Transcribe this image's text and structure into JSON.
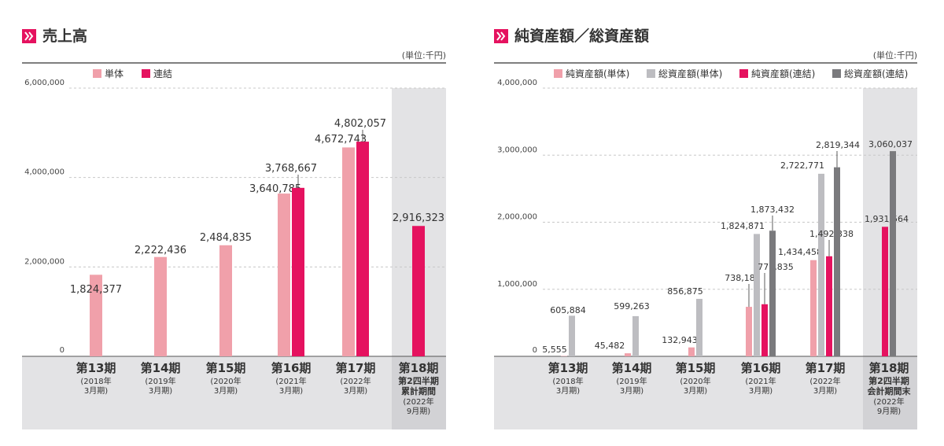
{
  "chart_data": [
    {
      "type": "bar",
      "title": "売上高",
      "unit": "(単位:千円)",
      "ylim": [
        0,
        6000000
      ],
      "yticks": [
        "0",
        "2,000,000",
        "4,000,000",
        "6,000,000"
      ],
      "grid": true,
      "legend_position": "top-left",
      "categories": [
        {
          "label": "第13期",
          "lines": [
            "(2018年",
            "3月期)"
          ]
        },
        {
          "label": "第14期",
          "lines": [
            "(2019年",
            "3月期)"
          ]
        },
        {
          "label": "第15期",
          "lines": [
            "(2020年",
            "3月期)"
          ]
        },
        {
          "label": "第16期",
          "lines": [
            "(2021年",
            "3月期)"
          ]
        },
        {
          "label": "第17期",
          "lines": [
            "(2022年",
            "3月期)"
          ]
        },
        {
          "label": "第18期",
          "bold_lines": [
            "第2四半期",
            "累計期間"
          ],
          "lines": [
            "(2022年",
            "9月期)"
          ],
          "highlight": true
        }
      ],
      "series": [
        {
          "name": "単体",
          "color": "#f0a0aa",
          "values": [
            1824377,
            2222436,
            2484835,
            3640785,
            4672743,
            null
          ],
          "labels": [
            "1,824,377",
            "2,222,436",
            "2,484,835",
            "3,640,785",
            "4,672,743",
            null
          ]
        },
        {
          "name": "連結",
          "color": "#e5125f",
          "values": [
            null,
            null,
            null,
            3768667,
            4802057,
            2916323
          ],
          "labels": [
            null,
            null,
            null,
            "3,768,667",
            "4,802,057",
            "2,916,323"
          ]
        }
      ]
    },
    {
      "type": "bar",
      "title": "純資産額／総資産額",
      "unit": "(単位:千円)",
      "ylim": [
        0,
        4000000
      ],
      "yticks": [
        "0",
        "1,000,000",
        "2,000,000",
        "3,000,000",
        "4,000,000"
      ],
      "grid": true,
      "legend_position": "top",
      "categories": [
        {
          "label": "第13期",
          "lines": [
            "(2018年",
            "3月期)"
          ]
        },
        {
          "label": "第14期",
          "lines": [
            "(2019年",
            "3月期)"
          ]
        },
        {
          "label": "第15期",
          "lines": [
            "(2020年",
            "3月期)"
          ]
        },
        {
          "label": "第16期",
          "lines": [
            "(2021年",
            "3月期)"
          ]
        },
        {
          "label": "第17期",
          "lines": [
            "(2022年",
            "3月期)"
          ]
        },
        {
          "label": "第18期",
          "bold_lines": [
            "第2四半期",
            "会計期間末"
          ],
          "lines": [
            "(2022年",
            "9月期)"
          ],
          "highlight": true
        }
      ],
      "series": [
        {
          "name": "純資産額(単体)",
          "color": "#f0a0aa",
          "values": [
            5555,
            45482,
            132943,
            738180,
            1434458,
            null
          ],
          "labels": [
            "5,555",
            "45,482",
            "132,943",
            "738,180",
            "1,434,458",
            null
          ]
        },
        {
          "name": "総資産額(単体)",
          "color": "#bdbdc1",
          "values": [
            605884,
            599263,
            856875,
            1824871,
            2722771,
            null
          ],
          "labels": [
            "605,884",
            "599,263",
            "856,875",
            "1,824,871",
            "2,722,771",
            null
          ]
        },
        {
          "name": "純資産額(連結)",
          "color": "#e5125f",
          "values": [
            null,
            null,
            null,
            776835,
            1492338,
            1931564
          ],
          "labels": [
            null,
            null,
            null,
            "776,835",
            "1,492,338",
            "1,931,564"
          ]
        },
        {
          "name": "総資産額(連結)",
          "color": "#7a7a7d",
          "values": [
            null,
            null,
            null,
            1873432,
            2819344,
            3060037
          ],
          "labels": [
            null,
            null,
            null,
            "1,873,432",
            "2,819,344",
            "3,060,037"
          ]
        }
      ]
    }
  ],
  "title_icon": "double-chevron-right-icon",
  "colors": {
    "accent": "#e5125f",
    "panel_bg": "#e3e3e5",
    "grid": "#c8c8c8"
  }
}
